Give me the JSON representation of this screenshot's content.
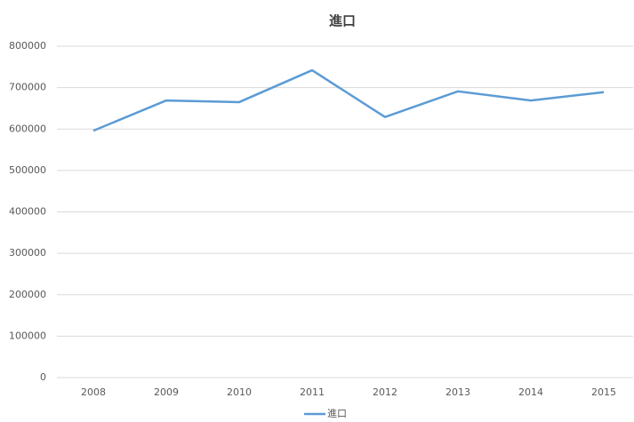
{
  "chart_data": {
    "type": "line",
    "title": "進口",
    "categories": [
      "2008",
      "2009",
      "2010",
      "2011",
      "2012",
      "2013",
      "2014",
      "2015"
    ],
    "series": [
      {
        "name": "進口",
        "color": "#5b9bd5",
        "values": [
          596000,
          669000,
          665000,
          742000,
          629000,
          691000,
          669000,
          689000
        ]
      }
    ],
    "ylim": [
      0,
      800000
    ],
    "yticks": [
      0,
      100000,
      200000,
      300000,
      400000,
      500000,
      600000,
      700000,
      800000
    ],
    "grid": true,
    "legend": "bottom"
  }
}
